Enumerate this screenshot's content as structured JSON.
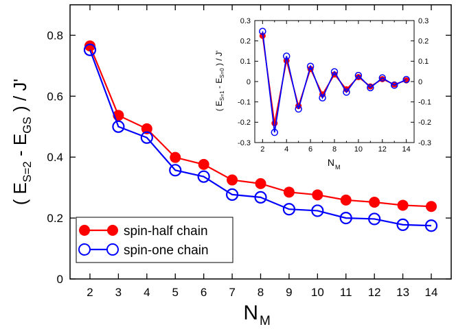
{
  "chart_data": [
    {
      "type": "line",
      "role": "main",
      "x": [
        2,
        3,
        4,
        5,
        6,
        7,
        8,
        9,
        10,
        11,
        12,
        13,
        14
      ],
      "xlim": [
        1.3,
        14.7
      ],
      "ylim": [
        0,
        0.9
      ],
      "xticks": [
        2,
        3,
        4,
        5,
        6,
        7,
        8,
        9,
        10,
        11,
        12,
        13,
        14
      ],
      "yticks": [
        0,
        0.2,
        0.4,
        0.6,
        0.8
      ],
      "ytick_labels": [
        "0",
        "0.2",
        "0.4",
        "0.6",
        "0.8"
      ],
      "xlabel": {
        "base": "N",
        "sub": "M"
      },
      "ylabel": {
        "open": "( E",
        "sub1": "S=2",
        "mid": " - E",
        "sub2": "GS",
        "close": " ) / J'"
      },
      "series": [
        {
          "name": "spin-half chain",
          "color": "#ff0000",
          "marker": "filled-circle",
          "values": [
            0.765,
            0.537,
            0.493,
            0.399,
            0.376,
            0.325,
            0.313,
            0.285,
            0.276,
            0.259,
            0.252,
            0.242,
            0.238
          ]
        },
        {
          "name": "spin-one chain",
          "color": "#0000ff",
          "marker": "open-circle",
          "values": [
            0.752,
            0.5,
            0.464,
            0.357,
            0.336,
            0.277,
            0.268,
            0.229,
            0.224,
            0.2,
            0.197,
            0.178,
            0.175
          ]
        }
      ],
      "legend": {
        "position": "bottom-left"
      }
    },
    {
      "type": "line",
      "role": "inset",
      "x": [
        2,
        3,
        4,
        5,
        6,
        7,
        8,
        9,
        10,
        11,
        12,
        13,
        14
      ],
      "xlim": [
        1.35,
        14.65
      ],
      "ylim": [
        -0.3,
        0.3
      ],
      "xticks": [
        2,
        4,
        6,
        8,
        10,
        12,
        14
      ],
      "yticks": [
        -0.3,
        -0.2,
        -0.1,
        0,
        0.1,
        0.2,
        0.3
      ],
      "ytick_labels": [
        "-0.3",
        "-0.2",
        "-0.1",
        "0",
        "0.1",
        "0.2",
        "0.3"
      ],
      "xlabel": {
        "base": "N",
        "sub": "M"
      },
      "ylabel": {
        "open": "( E",
        "sub1": "S=1",
        "mid": " - E",
        "sub2": "S=0",
        "close": " ) / J'"
      },
      "series": [
        {
          "name": "spin-half chain",
          "color": "#ff0000",
          "marker": "filled-circle",
          "values": [
            0.225,
            -0.205,
            0.103,
            -0.12,
            0.062,
            -0.063,
            0.035,
            -0.038,
            0.022,
            -0.024,
            0.012,
            -0.014,
            0.006
          ]
        },
        {
          "name": "spin-one chain",
          "color": "#0000ff",
          "marker": "open-circle",
          "values": [
            0.247,
            -0.25,
            0.125,
            -0.135,
            0.075,
            -0.08,
            0.048,
            -0.052,
            0.03,
            -0.03,
            0.018,
            -0.018,
            0.01
          ]
        }
      ]
    }
  ]
}
